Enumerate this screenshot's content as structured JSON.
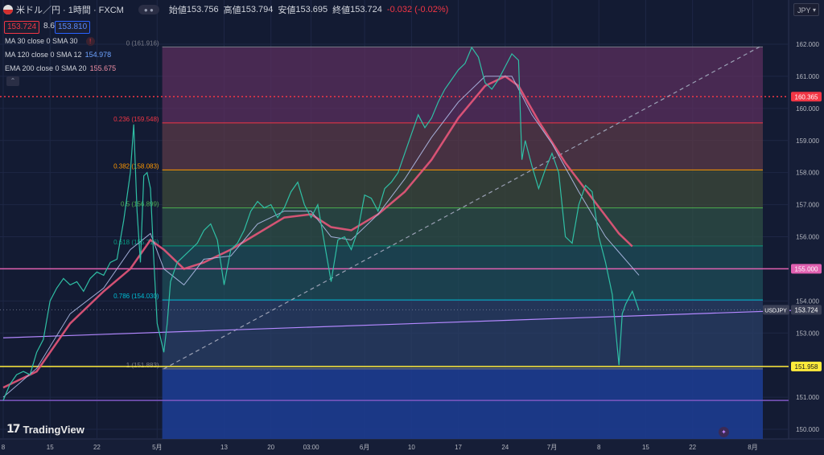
{
  "header": {
    "symbol": "米ドル／円 · 1時間 · FXCM",
    "open_label": "始値",
    "open": "153.756",
    "high_label": "高値",
    "high": "153.794",
    "low_label": "安値",
    "low": "153.695",
    "close_label": "終値",
    "close": "153.724",
    "change": "-0.032 (-0.02%)"
  },
  "quote": {
    "bid": "153.724",
    "spread": "8.6",
    "ask": "153.810"
  },
  "indicators": [
    {
      "label": "MA 30 close 0 SMA 30",
      "value": ""
    },
    {
      "label": "MA 120 close 0 SMA 12",
      "value": "154.978"
    },
    {
      "label": "EMA 200 close 0 SMA 20",
      "value": "155.675"
    }
  ],
  "currency": "JPY",
  "logo": "TradingView",
  "chart_data": {
    "type": "line",
    "y_axis": {
      "ticks": [
        150,
        151,
        152,
        153,
        154,
        155,
        156,
        157,
        158,
        159,
        160,
        161,
        162
      ],
      "tick_labels": [
        "150.000",
        "151.000",
        "152.000",
        "153.000",
        "154.000",
        "155.000",
        "156.000",
        "157.000",
        "158.000",
        "159.000",
        "160.000",
        "161.000",
        "162.000"
      ]
    },
    "x_axis": {
      "ticks": [
        0,
        7,
        14,
        21,
        24,
        33,
        40,
        44,
        48,
        57,
        64,
        71,
        78,
        85,
        92,
        99,
        106,
        113,
        120
      ],
      "tick_labels": [
        "8",
        "15",
        "22",
        "5月",
        "13",
        "20",
        "03:00",
        "6月",
        "10",
        "17",
        "24",
        "7月",
        "8",
        "15",
        "22",
        "8月"
      ],
      "tick_positions": [
        0,
        7,
        14,
        23,
        33,
        40,
        46,
        54,
        61,
        68,
        75,
        82,
        89,
        96,
        103,
        112
      ]
    },
    "fibonacci": [
      {
        "level": "0",
        "price": 161.916,
        "label": "0 (161.916)",
        "color": "#787b86"
      },
      {
        "level": "0.236",
        "price": 159.548,
        "label": "0.236 (159.548)",
        "color": "#f23645"
      },
      {
        "level": "0.382",
        "price": 158.083,
        "label": "0.382 (158.083)",
        "color": "#ff9800"
      },
      {
        "level": "0.5",
        "price": 156.899,
        "label": "0.5 (156.899)",
        "color": "#4caf50"
      },
      {
        "level": "0.618",
        "price": 155.716,
        "label": "0.618 (155.716)",
        "color": "#089981"
      },
      {
        "level": "0.786",
        "price": 154.03,
        "label": "0.786 (154.030)",
        "color": "#00bcd4"
      },
      {
        "level": "1",
        "price": 151.883,
        "label": "1 (151.883)",
        "color": "#787b86"
      }
    ],
    "horizontal_lines": [
      {
        "price": 160.365,
        "label": "160.365",
        "color": "#f23645",
        "style": "dotted"
      },
      {
        "price": 155.0,
        "label": "155.000",
        "color": "#e060b0",
        "style": "solid"
      },
      {
        "price": 151.958,
        "label": "151.958",
        "color": "#ffeb3b",
        "style": "solid"
      },
      {
        "price": 150.9,
        "label": "",
        "color": "#7e57c2",
        "style": "solid"
      }
    ],
    "current_price": {
      "price": 153.724,
      "label": "153.724",
      "symbol": "USDJPY"
    },
    "price_series": [
      [
        0,
        150.9
      ],
      [
        1,
        151.4
      ],
      [
        2,
        151.7
      ],
      [
        3,
        151.8
      ],
      [
        4,
        151.7
      ],
      [
        5,
        152.4
      ],
      [
        6,
        152.8
      ],
      [
        7,
        154.0
      ],
      [
        8,
        154.4
      ],
      [
        9,
        154.7
      ],
      [
        10,
        154.5
      ],
      [
        11,
        154.6
      ],
      [
        12,
        154.3
      ],
      [
        13,
        154.7
      ],
      [
        14,
        154.9
      ],
      [
        15,
        154.8
      ],
      [
        16,
        155.2
      ],
      [
        17,
        155.3
      ],
      [
        18,
        156.5
      ],
      [
        19,
        158.0
      ],
      [
        19.5,
        159.5
      ],
      [
        20,
        156.8
      ],
      [
        20.5,
        155.2
      ],
      [
        21,
        157.9
      ],
      [
        21.5,
        158.0
      ],
      [
        22,
        157.5
      ],
      [
        22.5,
        155.3
      ],
      [
        23,
        153.3
      ],
      [
        24,
        152.4
      ],
      [
        24.5,
        153.3
      ],
      [
        25,
        154.6
      ],
      [
        26,
        155.2
      ],
      [
        27,
        155.4
      ],
      [
        28,
        155.6
      ],
      [
        29,
        155.8
      ],
      [
        30,
        156.2
      ],
      [
        31,
        156.4
      ],
      [
        32,
        155.9
      ],
      [
        33,
        154.5
      ],
      [
        34,
        155.6
      ],
      [
        35,
        155.8
      ],
      [
        36,
        156.2
      ],
      [
        37,
        156.8
      ],
      [
        38,
        157.1
      ],
      [
        39,
        156.9
      ],
      [
        40,
        157.0
      ],
      [
        41,
        156.6
      ],
      [
        42,
        156.9
      ],
      [
        43,
        157.4
      ],
      [
        44,
        157.7
      ],
      [
        45,
        157.0
      ],
      [
        46,
        156.6
      ],
      [
        47,
        157.0
      ],
      [
        48,
        155.8
      ],
      [
        49,
        154.6
      ],
      [
        50,
        155.9
      ],
      [
        51,
        156.0
      ],
      [
        52,
        155.6
      ],
      [
        53,
        156.2
      ],
      [
        54,
        157.3
      ],
      [
        55,
        157.2
      ],
      [
        56,
        156.8
      ],
      [
        57,
        157.5
      ],
      [
        58,
        157.7
      ],
      [
        59,
        158.0
      ],
      [
        60,
        158.6
      ],
      [
        61,
        159.2
      ],
      [
        62,
        159.8
      ],
      [
        63,
        159.4
      ],
      [
        64,
        159.7
      ],
      [
        65,
        160.2
      ],
      [
        66,
        160.6
      ],
      [
        67,
        160.9
      ],
      [
        68,
        161.2
      ],
      [
        69,
        161.4
      ],
      [
        70,
        161.9
      ],
      [
        71,
        161.6
      ],
      [
        72,
        160.8
      ],
      [
        73,
        160.6
      ],
      [
        74,
        160.9
      ],
      [
        75,
        161.3
      ],
      [
        76,
        161.7
      ],
      [
        77,
        161.5
      ],
      [
        77.5,
        158.4
      ],
      [
        78,
        159.0
      ],
      [
        79,
        158.2
      ],
      [
        80,
        157.5
      ],
      [
        81,
        158.1
      ],
      [
        82,
        158.6
      ],
      [
        83,
        158.0
      ],
      [
        84,
        156.0
      ],
      [
        85,
        155.8
      ],
      [
        86,
        157.0
      ],
      [
        87,
        157.6
      ],
      [
        88,
        157.4
      ],
      [
        89,
        156.0
      ],
      [
        90,
        155.2
      ],
      [
        91,
        154.2
      ],
      [
        92,
        152.0
      ],
      [
        92.5,
        153.6
      ],
      [
        93,
        153.9
      ],
      [
        94,
        154.3
      ],
      [
        95,
        153.7
      ]
    ],
    "ma_fast": [
      [
        0,
        151.0
      ],
      [
        5,
        151.9
      ],
      [
        10,
        153.6
      ],
      [
        15,
        154.4
      ],
      [
        19,
        155.6
      ],
      [
        22,
        156.1
      ],
      [
        24,
        155.0
      ],
      [
        27,
        154.5
      ],
      [
        30,
        155.3
      ],
      [
        34,
        155.4
      ],
      [
        38,
        156.4
      ],
      [
        42,
        156.8
      ],
      [
        46,
        156.8
      ],
      [
        49,
        156.0
      ],
      [
        52,
        155.9
      ],
      [
        56,
        156.7
      ],
      [
        60,
        157.8
      ],
      [
        64,
        159.1
      ],
      [
        68,
        160.2
      ],
      [
        72,
        161.0
      ],
      [
        76,
        161.0
      ],
      [
        79,
        159.8
      ],
      [
        82,
        158.9
      ],
      [
        86,
        157.4
      ],
      [
        90,
        156.0
      ],
      [
        95,
        154.8
      ]
    ],
    "ema_slow": [
      [
        0,
        151.3
      ],
      [
        5,
        151.8
      ],
      [
        10,
        153.3
      ],
      [
        15,
        154.3
      ],
      [
        19,
        155.0
      ],
      [
        22,
        155.9
      ],
      [
        24,
        155.6
      ],
      [
        27,
        155.0
      ],
      [
        30,
        155.2
      ],
      [
        34,
        155.6
      ],
      [
        38,
        156.1
      ],
      [
        42,
        156.6
      ],
      [
        46,
        156.7
      ],
      [
        49,
        156.3
      ],
      [
        52,
        156.2
      ],
      [
        56,
        156.7
      ],
      [
        60,
        157.4
      ],
      [
        64,
        158.4
      ],
      [
        68,
        159.7
      ],
      [
        72,
        160.7
      ],
      [
        75,
        161.0
      ],
      [
        77,
        160.7
      ],
      [
        80,
        159.6
      ],
      [
        84,
        158.3
      ],
      [
        88,
        157.2
      ],
      [
        92,
        156.1
      ],
      [
        94,
        155.7
      ]
    ],
    "trendlines": [
      {
        "from": [
          24,
          151.883
        ],
        "to": [
          113,
          161.916
        ],
        "color": "#9aa0b4",
        "style": "dashed"
      },
      {
        "from": [
          0,
          152.85
        ],
        "to": [
          120,
          153.72
        ],
        "color": "#b388ff",
        "style": "solid"
      }
    ]
  }
}
